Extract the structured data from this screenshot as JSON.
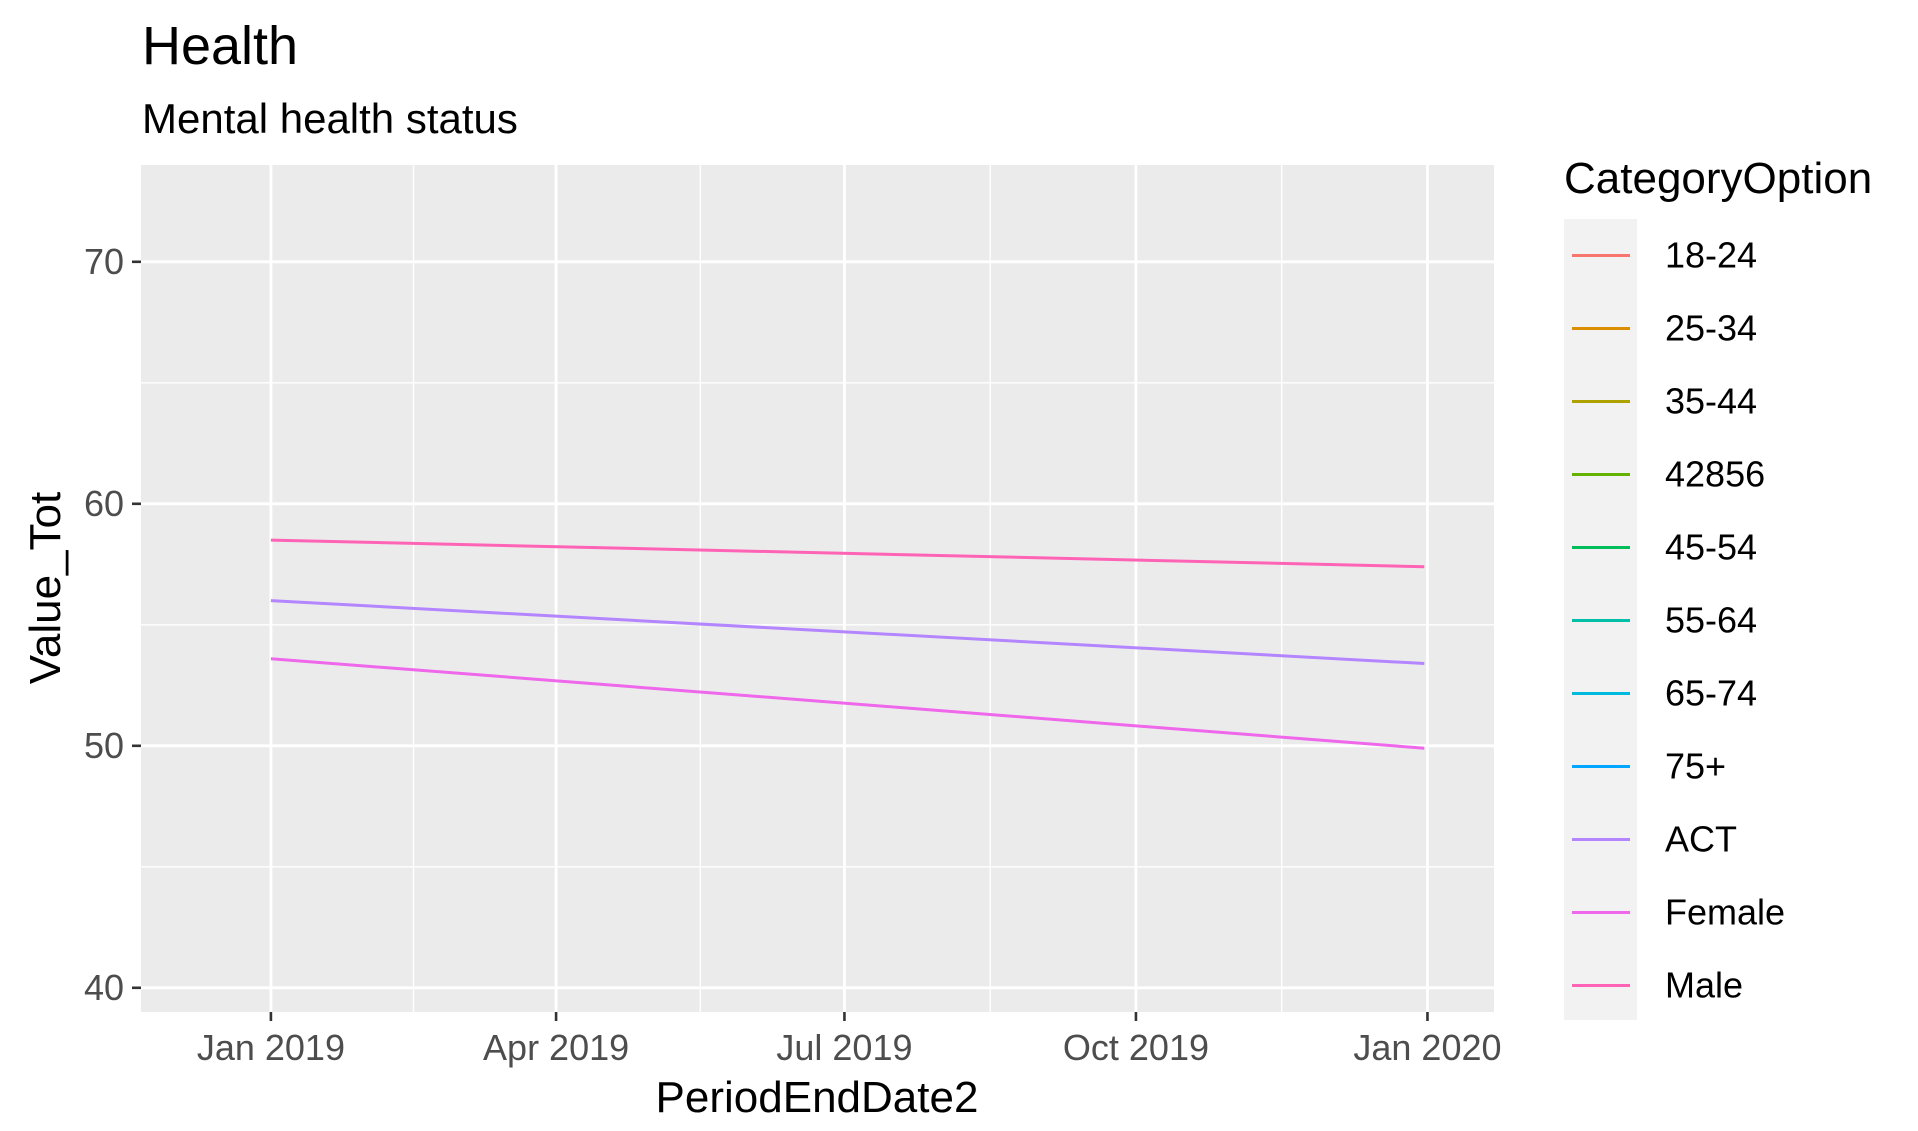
{
  "chart_data": {
    "type": "line",
    "title": "Health",
    "subtitle": "Mental health status",
    "xlabel": "PeriodEndDate2",
    "ylabel": "Value_Tot",
    "x_ticks": [
      "Jan 2019",
      "Apr 2019",
      "Jul 2019",
      "Oct 2019",
      "Jan 2020"
    ],
    "x_tick_dates": [
      "2019-01-01",
      "2019-04-01",
      "2019-07-01",
      "2019-10-01",
      "2020-01-01"
    ],
    "xlim": [
      "2018-11-21",
      "2020-01-22"
    ],
    "y_ticks": [
      40,
      50,
      60,
      70
    ],
    "ylim": [
      39,
      74
    ],
    "grid": true,
    "legend_position": "right",
    "legend_title": "CategoryOption",
    "legend": [
      {
        "name": "18-24",
        "color": "#F8766D"
      },
      {
        "name": "25-34",
        "color": "#DB8E00"
      },
      {
        "name": "35-44",
        "color": "#AEA200"
      },
      {
        "name": "42856",
        "color": "#64B200"
      },
      {
        "name": "45-54",
        "color": "#00BD5C"
      },
      {
        "name": "55-64",
        "color": "#00C1A7"
      },
      {
        "name": "65-74",
        "color": "#00BADE"
      },
      {
        "name": "75+",
        "color": "#00A6FF"
      },
      {
        "name": "ACT",
        "color": "#B385FF"
      },
      {
        "name": "Female",
        "color": "#EF67EB"
      },
      {
        "name": "Male",
        "color": "#FF63B6"
      }
    ],
    "series": [
      {
        "name": "Male",
        "color": "#FF63B6",
        "x": [
          "2019-01-01",
          "2019-12-31"
        ],
        "y": [
          58.5,
          57.4
        ]
      },
      {
        "name": "ACT",
        "color": "#B385FF",
        "x": [
          "2019-01-01",
          "2019-12-31"
        ],
        "y": [
          56.0,
          53.4
        ]
      },
      {
        "name": "Female",
        "color": "#EF67EB",
        "x": [
          "2019-01-01",
          "2019-12-31"
        ],
        "y": [
          53.6,
          49.9
        ]
      }
    ]
  }
}
